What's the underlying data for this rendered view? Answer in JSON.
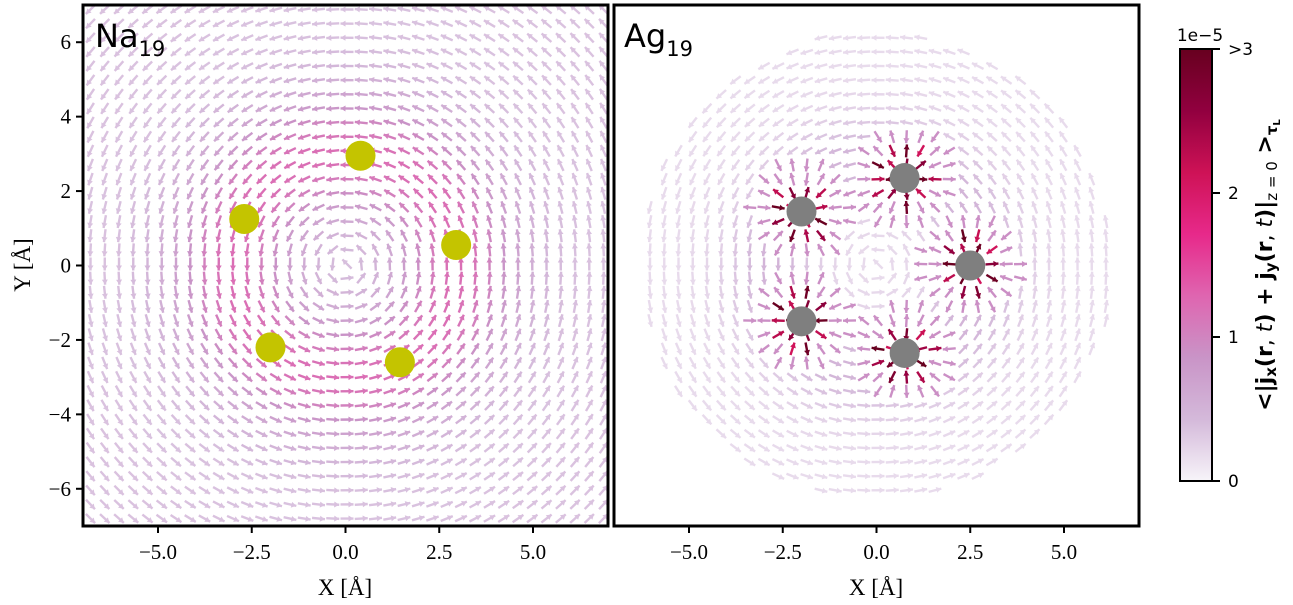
{
  "chart_data": [
    {
      "type": "quiver",
      "panel_label": "Na",
      "panel_label_subscript": "19",
      "xlabel": "X [Å]",
      "ylabel": "Y [Å]",
      "xlim": [
        -7,
        7
      ],
      "ylim": [
        -7,
        7
      ],
      "xticks": [
        -5.0,
        -2.5,
        0.0,
        2.5,
        5.0
      ],
      "xtick_labels": [
        "−5.0",
        "−2.5",
        "0.0",
        "2.5",
        "5.0"
      ],
      "yticks": [
        -6,
        -4,
        -2,
        0,
        2,
        4,
        6
      ],
      "ytick_labels": [
        "−6",
        "−4",
        "−2",
        "0",
        "2",
        "4",
        "6"
      ],
      "atom_color": "#c4c400",
      "atoms": [
        {
          "x": 0.4,
          "y": 2.95
        },
        {
          "x": -2.7,
          "y": 1.25
        },
        {
          "x": 2.95,
          "y": 0.55
        },
        {
          "x": -2.0,
          "y": -2.2
        },
        {
          "x": 1.45,
          "y": -2.6
        }
      ]
    },
    {
      "type": "quiver",
      "panel_label": "Ag",
      "panel_label_subscript": "19",
      "xlabel": "X [Å]",
      "ylabel": "",
      "xlim": [
        -7,
        7
      ],
      "ylim": [
        -7,
        7
      ],
      "xticks": [
        -5.0,
        -2.5,
        0.0,
        2.5,
        5.0
      ],
      "xtick_labels": [
        "−5.0",
        "−2.5",
        "0.0",
        "2.5",
        "5.0"
      ],
      "atom_color": "#7f7f7f",
      "atoms": [
        {
          "x": 0.75,
          "y": 2.35
        },
        {
          "x": -2.0,
          "y": 1.45
        },
        {
          "x": 2.5,
          "y": 0.0
        },
        {
          "x": -2.0,
          "y": -1.5
        },
        {
          "x": 0.75,
          "y": -2.35
        }
      ]
    }
  ],
  "colorbar": {
    "multiplier": "1e−5",
    "ticks": [
      0,
      1,
      2,
      3
    ],
    "tick_labels": [
      "0",
      "1",
      "2",
      ">3"
    ],
    "label": "<|jx(r, t) + jy(r, t)|z = 0 >τL",
    "colors": [
      "#f7f4f9",
      "#d4b9da",
      "#c994c7",
      "#df65b0",
      "#e7298a",
      "#ce1256",
      "#91003f",
      "#67001f"
    ]
  }
}
